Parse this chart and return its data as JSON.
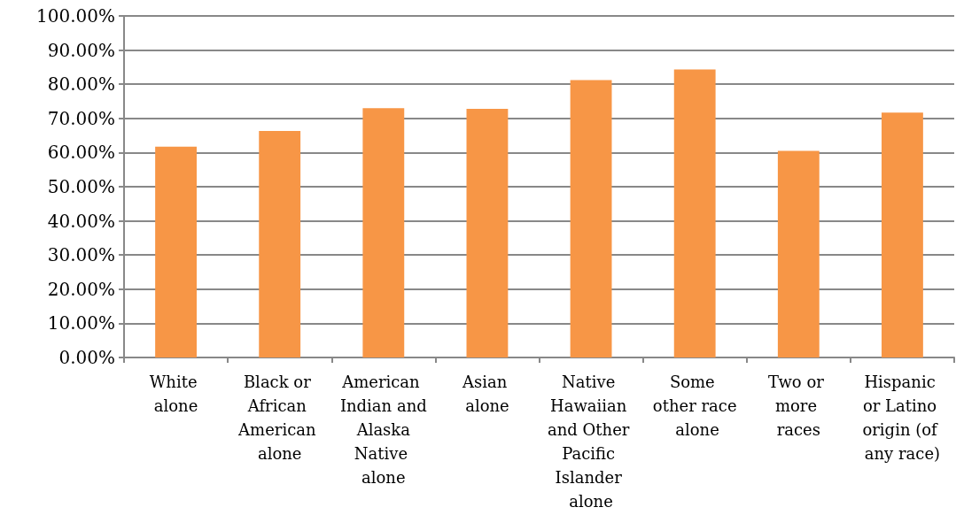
{
  "chart_data": {
    "type": "bar",
    "categories": [
      "White alone",
      "Black or African American alone",
      "American Indian and Alaska Native alone",
      "Asian alone",
      "Native Hawaiian and Other Pacific Islander alone",
      "Some other race alone",
      "Two or more races",
      "Hispanic or Latino origin (of any race)"
    ],
    "values": [
      61.7,
      66.3,
      73.0,
      72.8,
      81.2,
      84.3,
      60.5,
      71.7
    ],
    "color": "#f79646",
    "ylim": [
      0,
      100
    ],
    "yticks": [
      {
        "value": 0,
        "label": "0.00%"
      },
      {
        "value": 10,
        "label": "10.00%"
      },
      {
        "value": 20,
        "label": "20.00%"
      },
      {
        "value": 30,
        "label": "30.00%"
      },
      {
        "value": 40,
        "label": "40.00%"
      },
      {
        "value": 50,
        "label": "50.00%"
      },
      {
        "value": 60,
        "label": "60.00%"
      },
      {
        "value": 70,
        "label": "70.00%"
      },
      {
        "value": 80,
        "label": "80.00%"
      },
      {
        "value": 90,
        "label": "90.00%"
      },
      {
        "value": 100,
        "label": "100.00%"
      }
    ],
    "grid": "y"
  }
}
